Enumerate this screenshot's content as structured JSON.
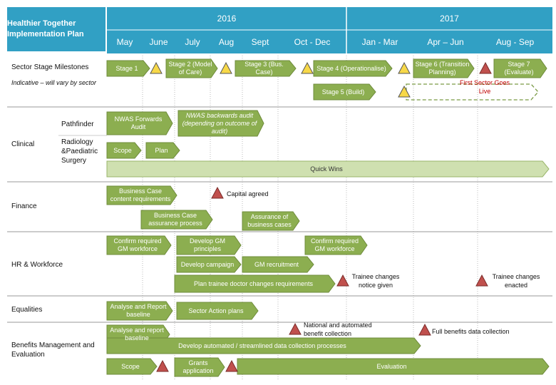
{
  "header": {
    "title": "Healthier Together Implementation Plan",
    "years": [
      "2016",
      "2017"
    ],
    "periods": [
      "May",
      "June",
      "July",
      "Aug",
      "Sept",
      "Oct - Dec",
      "Jan - Mar",
      "Apr – Jun",
      "Aug - Sep"
    ]
  },
  "rows": {
    "milestones": "Sector Stage Milestones",
    "indicative": "Indicative – will vary by sector",
    "clinical": "Clinical",
    "pathfinder": "Pathfinder",
    "radiology": "Radiology &Paediatric Surgery",
    "finance": "Finance",
    "hr": "HR & Workforce",
    "equalities": "Equalities",
    "benefits": "Benefits Management and Evaluation"
  },
  "activities": [
    "Stage 1",
    "Stage 2 (Model of Care)",
    "Stage 3 (Bus. Case)",
    "Stage 4 (Operationalise)",
    "Stage 5 (Build)",
    "Stage 6 (Transition Planning)",
    "Stage 7 (Evaluate)",
    "NWAS Forwards Audit",
    "NWAS backwards audit (depending on outcome of audit)",
    "Scope",
    "Plan",
    "Quick Wins",
    "Business Case content requirements",
    "Business Case assurance process",
    "Assurance of business cases",
    "Confirm required GM workforce",
    "Develop GM principles",
    "Confirm required GM workforce",
    "Develop campaign",
    "GM recruitment",
    "Plan trainee doctor changes requirements",
    "Analyse and Report baseline",
    "Sector Action plans",
    "Analyse and report baseline",
    "Develop automated / streamlined data collection processes",
    "Scope",
    "Grants application",
    "Evaluation"
  ],
  "milestone_labels": [
    "First Sector Goes Live",
    "Capital agreed",
    "Trainee changes notice given",
    "Trainee changes enacted",
    "National and automated benefit collection",
    "Full benefits data collection"
  ]
}
